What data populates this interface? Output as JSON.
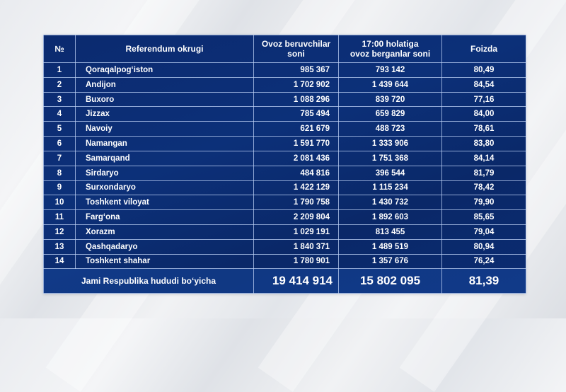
{
  "table": {
    "headers": {
      "number": "№",
      "district": "Referendum okrugi",
      "voters_line1": "Ovoz beruvchilar",
      "voters_line2": "soni",
      "voted_line1": "17:00 holatiga",
      "voted_line2": "ovoz berganlar soni",
      "percent": "Foizda"
    },
    "rows": [
      {
        "n": "1",
        "district": "Qoraqalpog‘iston",
        "voters": "985 367",
        "voted": "793 142",
        "percent": "80,49"
      },
      {
        "n": "2",
        "district": "Andijon",
        "voters": "1 702 902",
        "voted": "1 439 644",
        "percent": "84,54"
      },
      {
        "n": "3",
        "district": "Buxoro",
        "voters": "1 088 296",
        "voted": "839 720",
        "percent": "77,16"
      },
      {
        "n": "4",
        "district": "Jizzax",
        "voters": "785 494",
        "voted": "659 829",
        "percent": "84,00"
      },
      {
        "n": "5",
        "district": "Navoiy",
        "voters": "621 679",
        "voted": "488 723",
        "percent": "78,61"
      },
      {
        "n": "6",
        "district": "Namangan",
        "voters": "1 591 770",
        "voted": "1 333 906",
        "percent": "83,80"
      },
      {
        "n": "7",
        "district": "Samarqand",
        "voters": "2 081 436",
        "voted": "1 751 368",
        "percent": "84,14"
      },
      {
        "n": "8",
        "district": "Sirdaryo",
        "voters": "484 816",
        "voted": "396 544",
        "percent": "81,79"
      },
      {
        "n": "9",
        "district": "Surxondaryo",
        "voters": "1 422 129",
        "voted": "1 115 234",
        "percent": "78,42"
      },
      {
        "n": "10",
        "district": "Toshkent viloyat",
        "voters": "1 790 758",
        "voted": "1 430 732",
        "percent": "79,90"
      },
      {
        "n": "11",
        "district": "Farg‘ona",
        "voters": "2 209 804",
        "voted": "1 892 603",
        "percent": "85,65"
      },
      {
        "n": "12",
        "district": "Xorazm",
        "voters": "1 029 191",
        "voted": "813 455",
        "percent": "79,04"
      },
      {
        "n": "13",
        "district": "Qashqadaryo",
        "voters": "1 840 371",
        "voted": "1 489 519",
        "percent": "80,94"
      },
      {
        "n": "14",
        "district": "Toshkent shahar",
        "voters": "1 780 901",
        "voted": "1 357 676",
        "percent": "76,24"
      }
    ],
    "total": {
      "label": "Jami Respublika hududi bo‘yicha",
      "voters": "19 414 914",
      "voted": "15 802 095",
      "percent": "81,39"
    }
  },
  "colors": {
    "table_bg": "#0b2c72",
    "grid": "#bed2f5",
    "page_bg": "#eceef1",
    "text": "#ffffff"
  }
}
